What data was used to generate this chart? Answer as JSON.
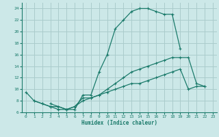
{
  "xlabel": "Humidex (Indice chaleur)",
  "bg_color": "#cce8e8",
  "grid_color": "#aacccc",
  "line_color": "#1a7a6a",
  "xlim": [
    -0.5,
    23.5
  ],
  "ylim": [
    6,
    25
  ],
  "xticks": [
    0,
    1,
    2,
    3,
    4,
    5,
    6,
    7,
    8,
    9,
    10,
    11,
    12,
    13,
    14,
    15,
    16,
    17,
    18,
    19,
    20,
    21,
    22,
    23
  ],
  "yticks": [
    6,
    8,
    10,
    12,
    14,
    16,
    18,
    20,
    22,
    24
  ],
  "series1_x": [
    0,
    1,
    2,
    3,
    4,
    5,
    6,
    7,
    8,
    9,
    10,
    11,
    12,
    13,
    14,
    15,
    16,
    17,
    18,
    19
  ],
  "series1_y": [
    9.5,
    8.0,
    7.5,
    7.0,
    6.5,
    6.5,
    6.5,
    9.0,
    9.0,
    13.0,
    16.0,
    20.5,
    22.0,
    23.5,
    24.0,
    24.0,
    23.5,
    23.0,
    23.0,
    17.0
  ],
  "series2_x": [
    3,
    4,
    5,
    6,
    7,
    8,
    9,
    10,
    11,
    12,
    13,
    14,
    15,
    16,
    17,
    18,
    19,
    20,
    21,
    22
  ],
  "series2_y": [
    7.5,
    7.0,
    6.5,
    7.0,
    8.5,
    8.5,
    9.0,
    10.0,
    11.0,
    12.0,
    13.0,
    13.5,
    14.0,
    14.5,
    15.0,
    15.5,
    15.5,
    15.5,
    11.0,
    10.5
  ],
  "series3_x": [
    1,
    2,
    3,
    4,
    5,
    6,
    7,
    8,
    9,
    10,
    11,
    12,
    13,
    14,
    15,
    16,
    17,
    18,
    19,
    20,
    21,
    22
  ],
  "series3_y": [
    8.0,
    7.5,
    7.0,
    7.0,
    6.5,
    7.0,
    8.0,
    8.5,
    9.0,
    9.5,
    10.0,
    10.5,
    11.0,
    11.0,
    11.5,
    12.0,
    12.5,
    13.0,
    13.5,
    10.0,
    10.5,
    10.5
  ]
}
